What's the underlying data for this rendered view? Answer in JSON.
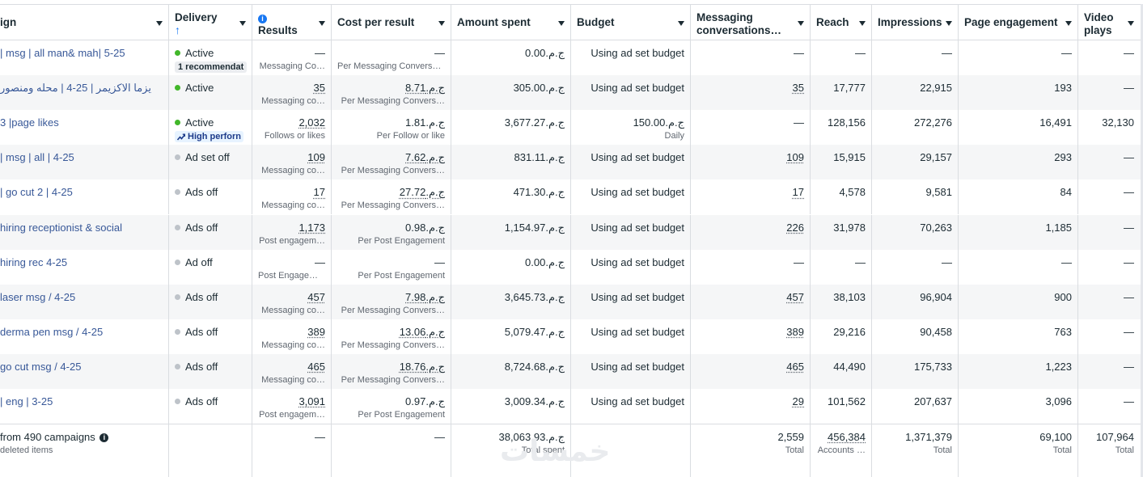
{
  "columns": [
    {
      "label": "ign"
    },
    {
      "label": "Delivery",
      "sort_icon": "arrow-up-icon"
    },
    {
      "label": "Results",
      "info_icon": "info-icon"
    },
    {
      "label": "Cost per result"
    },
    {
      "label": "Amount spent"
    },
    {
      "label": "Budget"
    },
    {
      "label": "Messaging conversations…"
    },
    {
      "label": "Reach"
    },
    {
      "label": "Impressions"
    },
    {
      "label": "Page engagement"
    },
    {
      "label": "Video plays"
    }
  ],
  "rows": [
    {
      "name": "| msg | all man& mah| 5-25",
      "status": "Active",
      "status_color": "green",
      "badge": "1 recommendat",
      "results": "—",
      "results_sub": "Messaging Co…",
      "cpr": "—",
      "cpr_sub": "Per Messaging Conversa…",
      "spent": "ج.م.0.00",
      "budget": "Using ad set budget",
      "budget_sub": "",
      "msg": "—",
      "reach": "—",
      "impr": "—",
      "eng": "—",
      "video": "—"
    },
    {
      "name": "يزما الاكزيمر | 25-4 | محله ومنصور",
      "status": "Active",
      "status_color": "green",
      "badge": "",
      "results": "35",
      "results_sub": "Messaging co…",
      "cpr": "ج.م.8.71",
      "cpr_sub": "Per Messaging Convers…",
      "spent": "ج.م.305.00",
      "budget": "Using ad set budget",
      "budget_sub": "",
      "msg": "35",
      "reach": "17,777",
      "impr": "22,915",
      "eng": "193",
      "video": "—"
    },
    {
      "name": "3 |page likes",
      "status": "Active",
      "status_color": "green",
      "badge": "High perforn",
      "results": "2,032",
      "results_sub": "Follows or likes",
      "cpr": "ج.م.1.81",
      "cpr_sub": "Per Follow or like",
      "spent": "ج.م.3,677.27",
      "budget": "ج.م.150.00",
      "budget_sub": "Daily",
      "msg": "—",
      "reach": "128,156",
      "impr": "272,276",
      "eng": "16,491",
      "video": "32,130"
    },
    {
      "name": "| msg | all | 4-25",
      "status": "Ad set off",
      "status_color": "gray",
      "badge": "",
      "results": "109",
      "results_sub": "Messaging co…",
      "cpr": "ج.م.7.62",
      "cpr_sub": "Per Messaging Convers…",
      "spent": "ج.م.831.11",
      "budget": "Using ad set budget",
      "budget_sub": "",
      "msg": "109",
      "reach": "15,915",
      "impr": "29,157",
      "eng": "293",
      "video": "—"
    },
    {
      "name": "| go cut 2 | 4-25",
      "status": "Ads off",
      "status_color": "gray",
      "badge": "",
      "results": "17",
      "results_sub": "Messaging co…",
      "cpr": "ج.م.27.72",
      "cpr_sub": "Per Messaging Convers…",
      "spent": "ج.م.471.30",
      "budget": "Using ad set budget",
      "budget_sub": "",
      "msg": "17",
      "reach": "4,578",
      "impr": "9,581",
      "eng": "84",
      "video": "—"
    },
    {
      "name": "hiring receptionist & social",
      "status": "Ads off",
      "status_color": "gray",
      "badge": "",
      "results": "1,173",
      "results_sub": "Post engagem…",
      "cpr": "ج.م.0.98",
      "cpr_sub": "Per Post Engagement",
      "spent": "ج.م.1,154.97",
      "budget": "Using ad set budget",
      "budget_sub": "",
      "msg": "226",
      "reach": "31,978",
      "impr": "70,263",
      "eng": "1,185",
      "video": "—"
    },
    {
      "name": "hiring rec 4-25",
      "status": "Ad off",
      "status_color": "gray",
      "badge": "",
      "results": "—",
      "results_sub": "Post Engagem…",
      "cpr": "—",
      "cpr_sub": "Per Post Engagement",
      "spent": "ج.م.0.00",
      "budget": "Using ad set budget",
      "budget_sub": "",
      "msg": "—",
      "reach": "—",
      "impr": "—",
      "eng": "—",
      "video": "—"
    },
    {
      "name": "laser msg / 4-25",
      "status": "Ads off",
      "status_color": "gray",
      "badge": "",
      "results": "457",
      "results_sub": "Messaging co…",
      "cpr": "ج.م.7.98",
      "cpr_sub": "Per Messaging Convers…",
      "spent": "ج.م.3,645.73",
      "budget": "Using ad set budget",
      "budget_sub": "",
      "msg": "457",
      "reach": "38,103",
      "impr": "96,904",
      "eng": "900",
      "video": "—"
    },
    {
      "name": "derma pen msg / 4-25",
      "status": "Ads off",
      "status_color": "gray",
      "badge": "",
      "results": "389",
      "results_sub": "Messaging co…",
      "cpr": "ج.م.13.06",
      "cpr_sub": "Per Messaging Convers…",
      "spent": "ج.م.5,079.47",
      "budget": "Using ad set budget",
      "budget_sub": "",
      "msg": "389",
      "reach": "29,216",
      "impr": "90,458",
      "eng": "763",
      "video": "—"
    },
    {
      "name": "go cut msg / 4-25",
      "status": "Ads off",
      "status_color": "gray",
      "badge": "",
      "results": "465",
      "results_sub": "Messaging co…",
      "cpr": "ج.م.18.76",
      "cpr_sub": "Per Messaging Convers…",
      "spent": "ج.م.8,724.68",
      "budget": "Using ad set budget",
      "budget_sub": "",
      "msg": "465",
      "reach": "44,490",
      "impr": "175,733",
      "eng": "1,223",
      "video": "—"
    },
    {
      "name": "| eng | 3-25",
      "status": "Ads off",
      "status_color": "gray",
      "badge": "",
      "results": "3,091",
      "results_sub": "Post engagem…",
      "cpr": "ج.م.0.97",
      "cpr_sub": "Per Post Engagement",
      "spent": "ج.م.3,009.34",
      "budget": "Using ad set budget",
      "budget_sub": "",
      "msg": "29",
      "reach": "101,562",
      "impr": "207,637",
      "eng": "3,096",
      "video": "—"
    }
  ],
  "summary": {
    "name": "from 490 campaigns",
    "name_sub": "deleted items",
    "results": "—",
    "cpr": "—",
    "spent": "ج.م.38,063.93",
    "spent_sub": "Total spent",
    "msg": "2,559",
    "msg_sub": "Total",
    "reach": "456,384",
    "reach_sub": "Accounts …",
    "impr": "1,371,379",
    "impr_sub": "Total",
    "eng": "69,100",
    "eng_sub": "Total",
    "video": "107,964",
    "video_sub": "Total"
  },
  "watermark": "خمسات",
  "colors": {
    "link": "#385898",
    "active": "#42b72a",
    "off": "#bec3c9",
    "accent": "#1877f2"
  }
}
